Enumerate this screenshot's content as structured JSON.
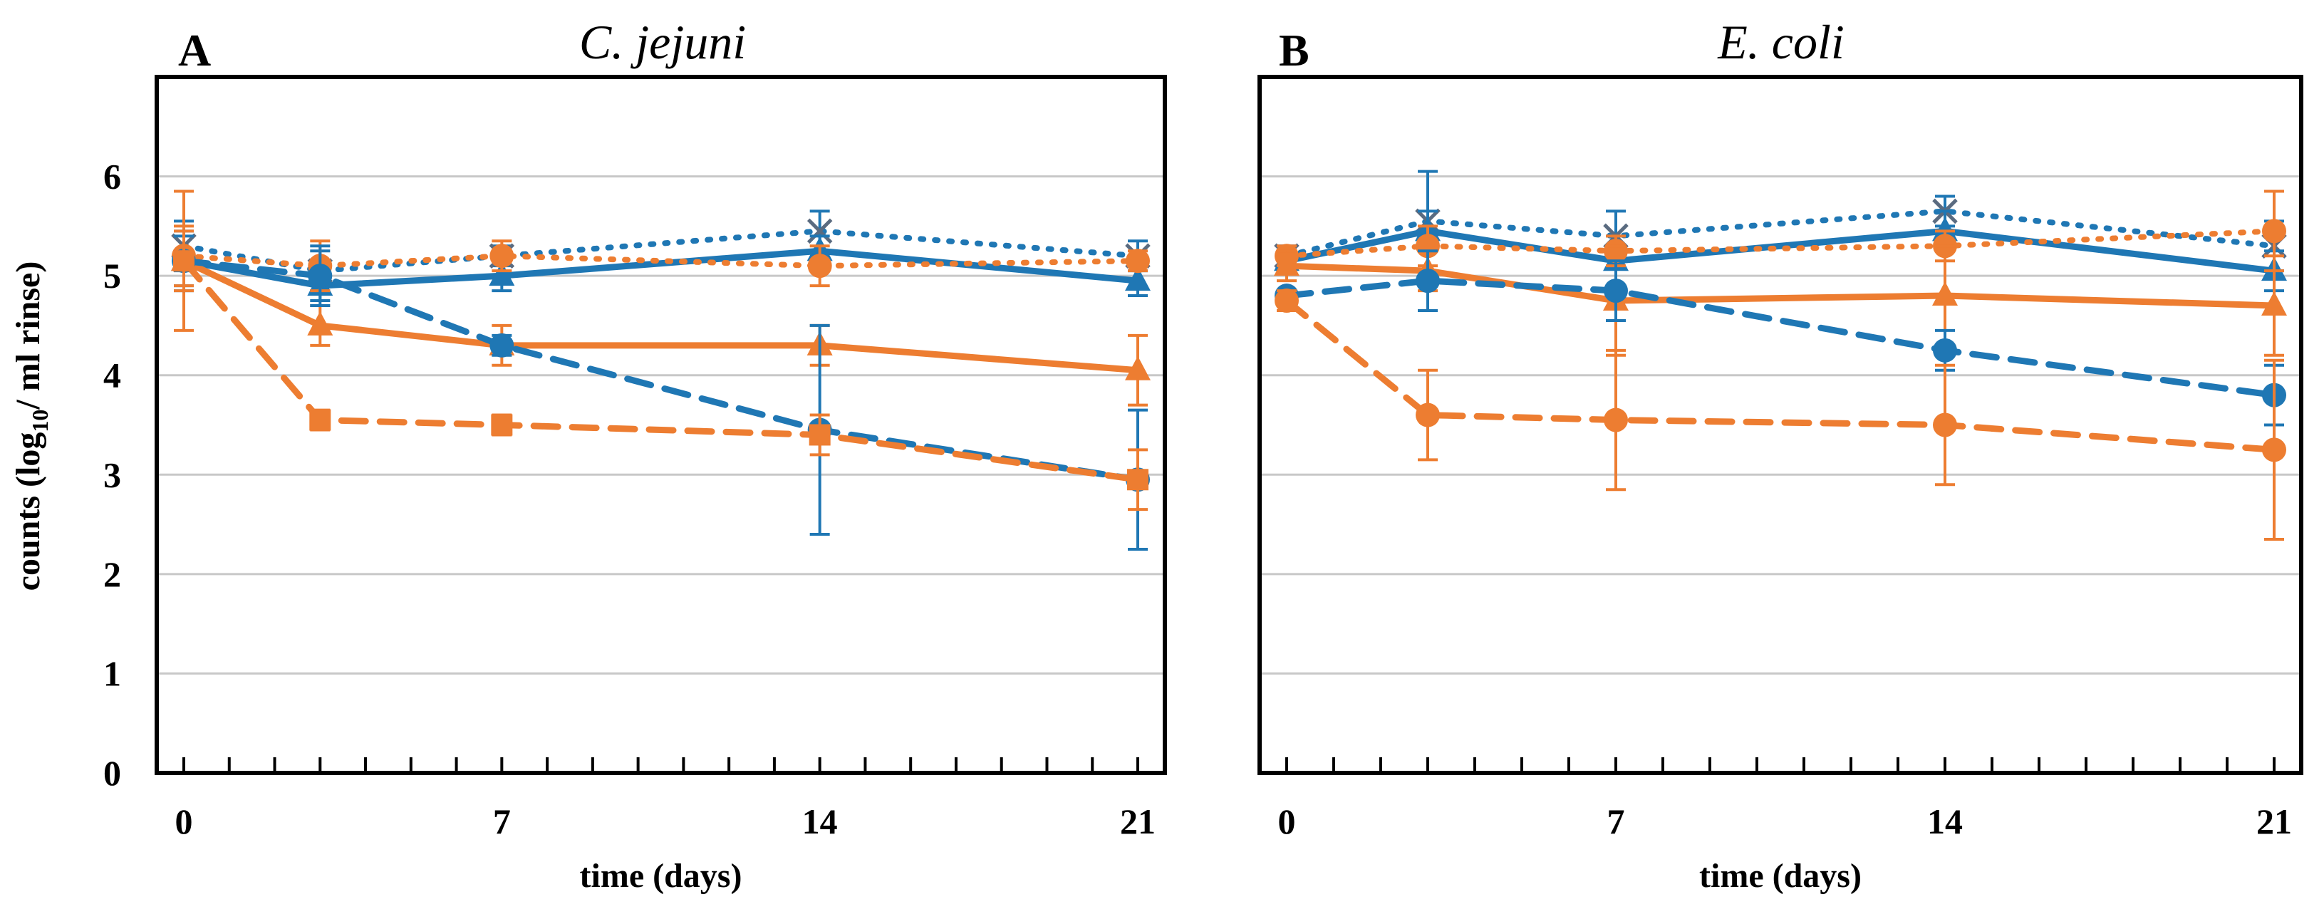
{
  "chart_data": [
    {
      "type": "line",
      "panel_label": "A",
      "title": "C. jejuni",
      "xlabel": "time (days)",
      "ylabel": "counts (log",
      "ylabel_sub": "10",
      "ylabel_rest": "/ ml rinse)",
      "xlim": [
        0,
        21
      ],
      "ylim": [
        0,
        7
      ],
      "x_ticks": [
        0,
        7,
        14,
        21
      ],
      "x_tick_labels": [
        "0",
        "7",
        "14",
        "21"
      ],
      "y_ticks": [
        0,
        1,
        2,
        3,
        4,
        5,
        6
      ],
      "y_tick_labels": [
        "0",
        "1",
        "2",
        "3",
        "4",
        "5",
        "6"
      ],
      "grid": true,
      "x": [
        0,
        3,
        7,
        14,
        21
      ],
      "series": [
        {
          "name": "blue-dotted-x",
          "color": "#1f77b4",
          "dash": "dotted",
          "marker": "x",
          "values": [
            5.3,
            5.05,
            5.2,
            5.45,
            5.2
          ],
          "errors": [
            0.25,
            0.2,
            0.1,
            0.2,
            0.15
          ]
        },
        {
          "name": "blue-solid-triangle",
          "color": "#1f77b4",
          "dash": "solid",
          "marker": "triangle",
          "values": [
            5.15,
            4.9,
            5.0,
            5.25,
            4.95
          ],
          "errors": [
            0.25,
            0.15,
            0.15,
            0.15,
            0.15
          ]
        },
        {
          "name": "orange-dotted-circle",
          "color": "#ed7d31",
          "dash": "dotted",
          "marker": "circle",
          "values": [
            5.2,
            5.1,
            5.2,
            5.1,
            5.15
          ],
          "errors": [
            0.3,
            0.25,
            0.15,
            0.2,
            0.1
          ]
        },
        {
          "name": "orange-solid-triangle",
          "color": "#ed7d31",
          "dash": "solid",
          "marker": "triangle",
          "values": [
            5.15,
            4.5,
            4.3,
            4.3,
            4.05
          ],
          "errors": [
            0.7,
            0.2,
            0.2,
            0.2,
            0.35
          ]
        },
        {
          "name": "blue-dashed-circle",
          "color": "#1f77b4",
          "dash": "dashed",
          "marker": "circle",
          "values": [
            5.15,
            5.0,
            4.3,
            3.45,
            2.95
          ],
          "errors": [
            0.3,
            0.3,
            0.1,
            1.05,
            0.7
          ]
        },
        {
          "name": "orange-dashed-square",
          "color": "#ed7d31",
          "dash": "dashed",
          "marker": "square",
          "values": [
            5.15,
            3.55,
            3.5,
            3.4,
            2.95
          ],
          "errors": [
            0.3,
            0.1,
            0.1,
            0.2,
            0.3
          ]
        }
      ]
    },
    {
      "type": "line",
      "panel_label": "B",
      "title": "E. coli",
      "xlabel": "time (days)",
      "xlim": [
        0,
        21
      ],
      "ylim": [
        0,
        7
      ],
      "x_ticks": [
        0,
        7,
        14,
        21
      ],
      "x_tick_labels": [
        "0",
        "7",
        "14",
        "21"
      ],
      "y_ticks": [
        0,
        1,
        2,
        3,
        4,
        5,
        6
      ],
      "grid": true,
      "x": [
        0,
        3,
        7,
        14,
        21
      ],
      "series": [
        {
          "name": "blue-dotted-x",
          "color": "#1f77b4",
          "dash": "dotted",
          "marker": "x",
          "values": [
            5.2,
            5.55,
            5.4,
            5.65,
            5.3
          ],
          "errors": [
            0.1,
            0.5,
            0.25,
            0.15,
            0.25
          ]
        },
        {
          "name": "blue-solid-triangle",
          "color": "#1f77b4",
          "dash": "solid",
          "marker": "triangle",
          "values": [
            5.15,
            5.45,
            5.15,
            5.45,
            5.05
          ],
          "errors": [
            0.1,
            0.2,
            0.25,
            0.2,
            0.2
          ]
        },
        {
          "name": "orange-dotted-circle",
          "color": "#ed7d31",
          "dash": "dotted",
          "marker": "circle",
          "values": [
            5.2,
            5.3,
            5.25,
            5.3,
            5.45
          ],
          "errors": [
            0.1,
            0.2,
            0.15,
            0.15,
            0.4
          ]
        },
        {
          "name": "orange-solid-triangle",
          "color": "#ed7d31",
          "dash": "solid",
          "marker": "triangle",
          "values": [
            5.1,
            5.05,
            4.75,
            4.8,
            4.7
          ],
          "errors": [
            0.15,
            0.2,
            0.55,
            0.5,
            0.5
          ]
        },
        {
          "name": "blue-dashed-circle",
          "color": "#1f77b4",
          "dash": "dashed",
          "marker": "circle",
          "values": [
            4.8,
            4.95,
            4.85,
            4.25,
            3.8
          ],
          "errors": [
            0.05,
            0.3,
            0.3,
            0.2,
            0.3
          ]
        },
        {
          "name": "orange-dashed-circle",
          "color": "#ed7d31",
          "dash": "dashed",
          "marker": "circle",
          "values": [
            4.75,
            3.6,
            3.55,
            3.5,
            3.25
          ],
          "errors": [
            0.1,
            0.45,
            0.7,
            0.6,
            0.9
          ]
        }
      ]
    }
  ]
}
